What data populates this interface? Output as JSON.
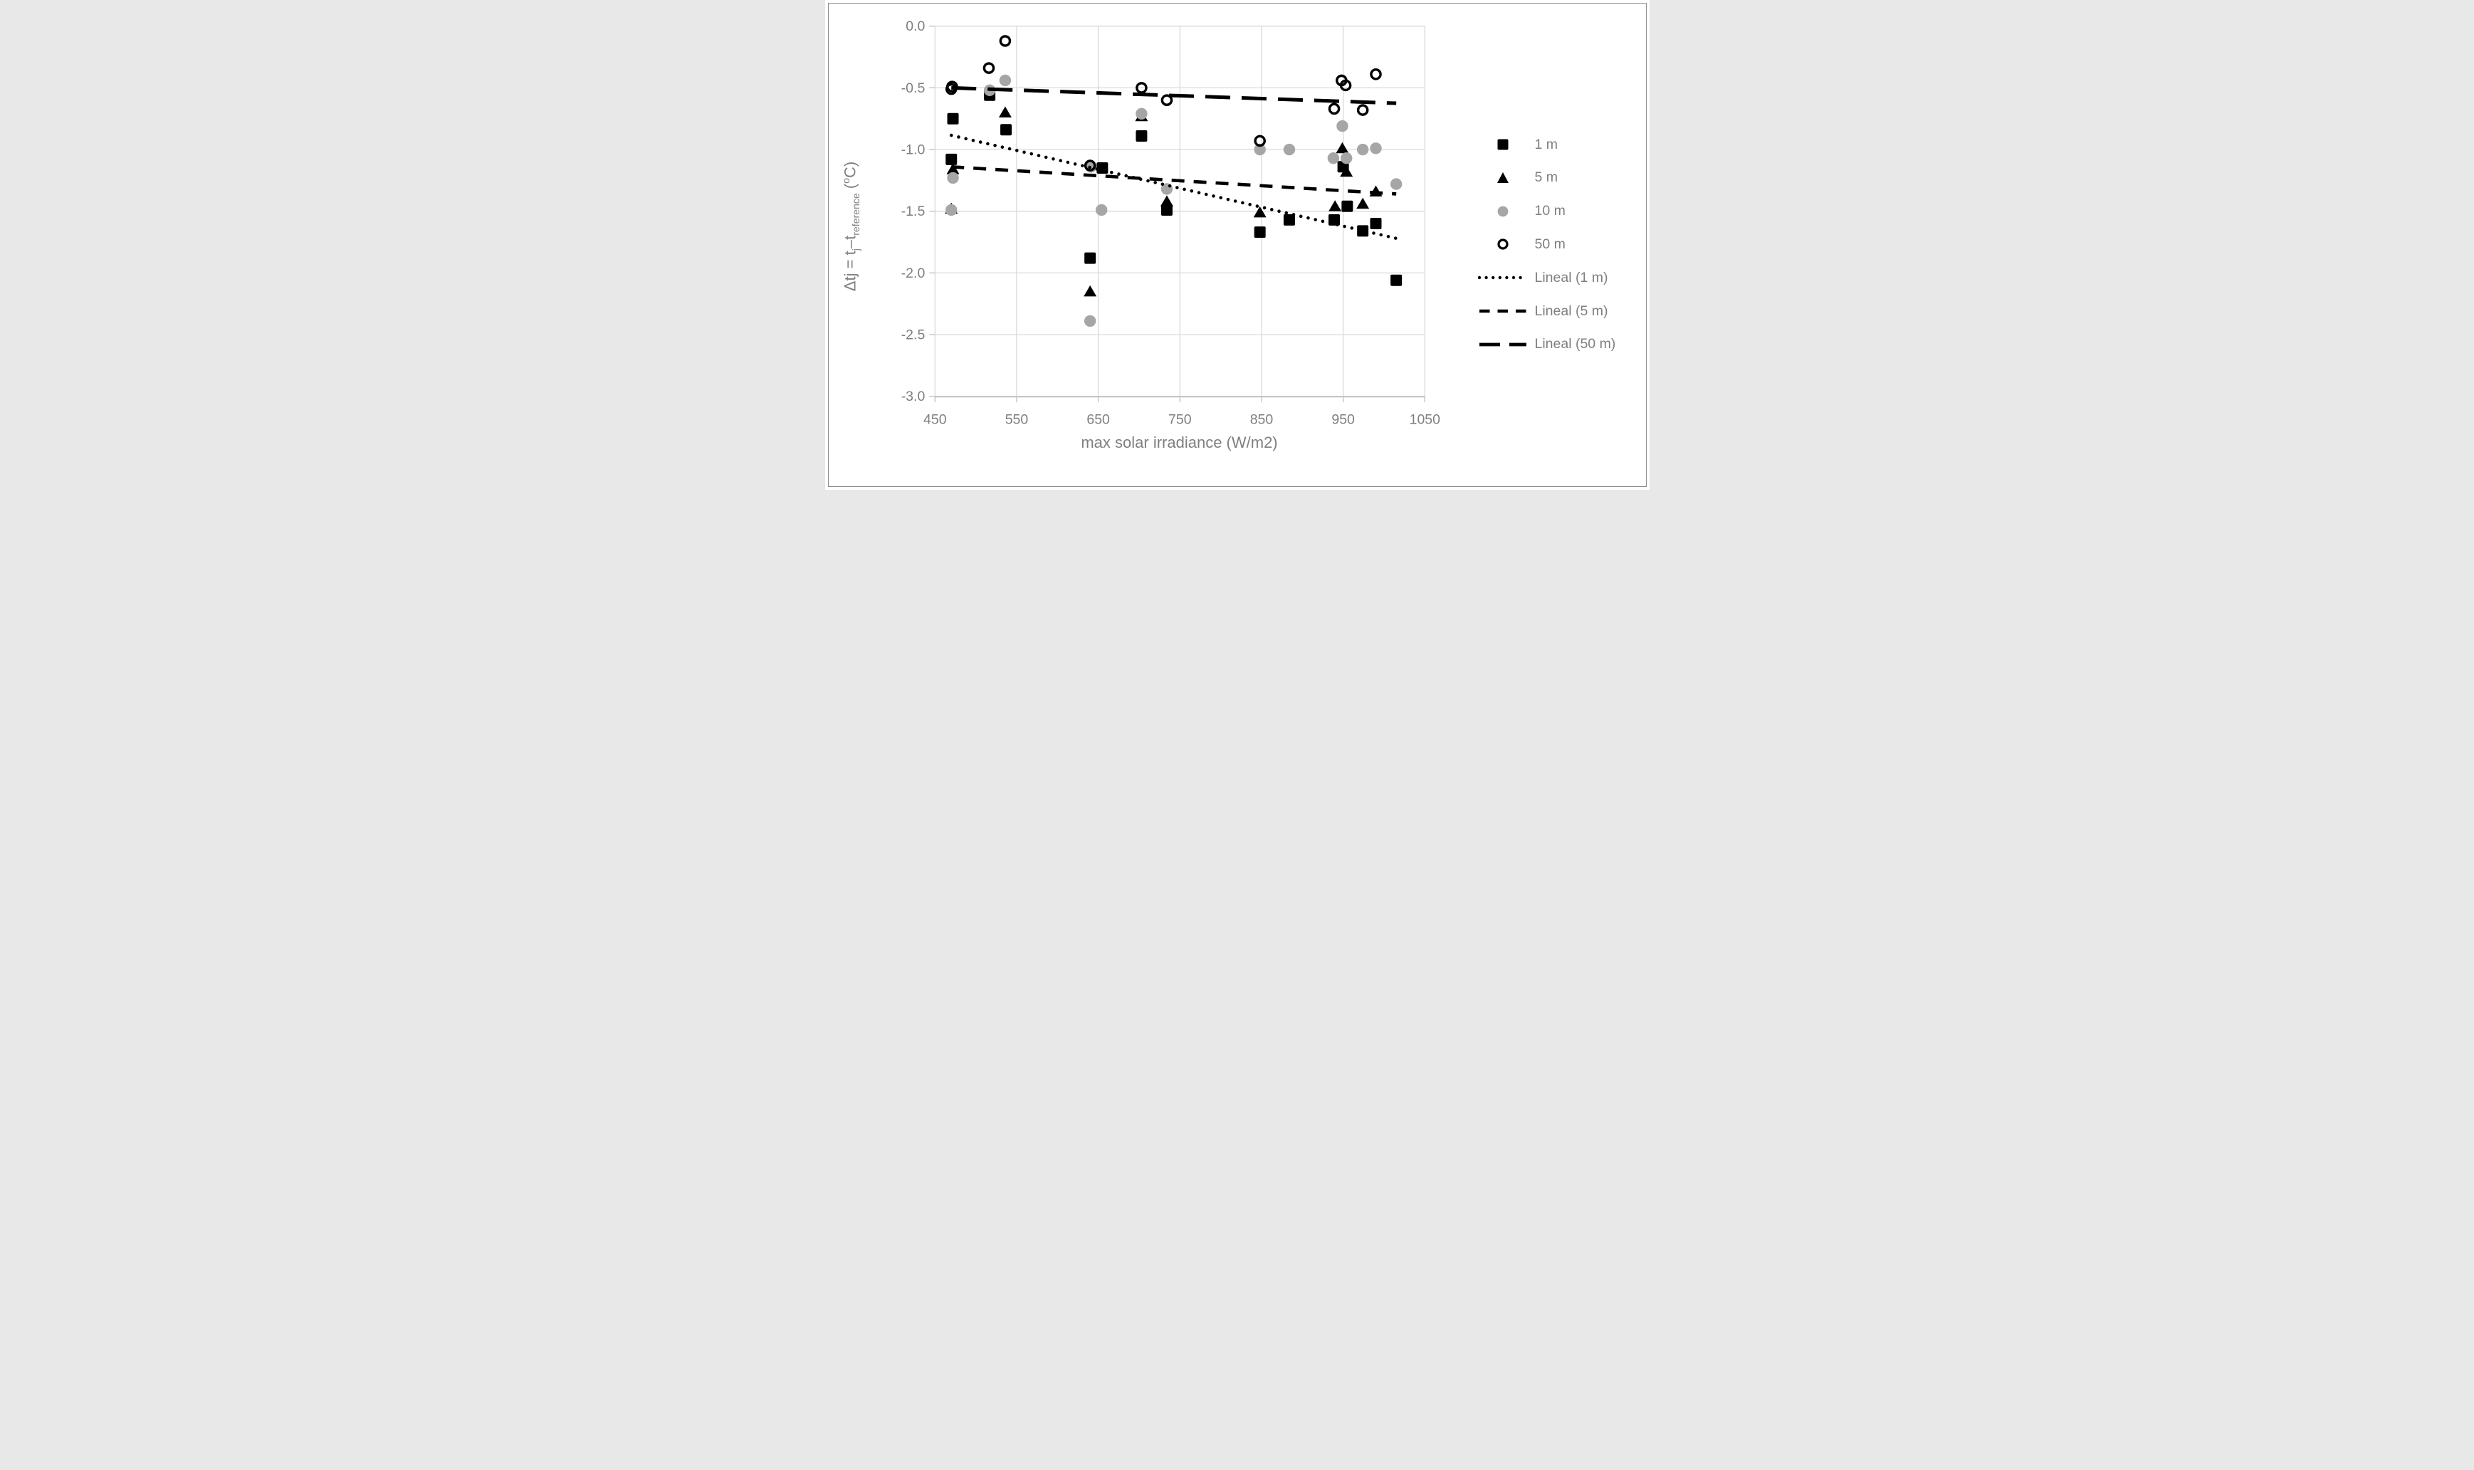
{
  "figure": {
    "border_color": "#8c8c8c",
    "background": "#ffffff"
  },
  "chart_data": {
    "type": "scatter",
    "title": "",
    "xlabel": "max solar irradiance (W/m2)",
    "ylabel_text": "Δtj = tj–treference (oC)",
    "ylabel_parts": [
      {
        "t": "Δtj = t"
      },
      {
        "sub": "j"
      },
      {
        "t": "–t"
      },
      {
        "sub": "reference"
      },
      {
        "t": " ("
      },
      {
        "sup": "o"
      },
      {
        "t": "C)"
      }
    ],
    "xlim": [
      450,
      1050
    ],
    "ylim": [
      -3.0,
      0.0
    ],
    "xtick_labels": [
      "450",
      "550",
      "650",
      "750",
      "850",
      "950",
      "1050"
    ],
    "ytick_labels": [
      "0.0",
      "-0.5",
      "-1.0",
      "-1.5",
      "-2.0",
      "-2.5",
      "-3.0"
    ],
    "grid": true,
    "legend_position": "right",
    "colors": {
      "grid": "#d9d9d9",
      "axis": "#bfbfbf",
      "text": "#7f7f7f",
      "black_series": "#000000",
      "gray_series": "#a6a6a6"
    },
    "series": [
      {
        "name": "1 m",
        "marker": "square",
        "color": "#000000",
        "points": [
          [
            472,
            -0.75
          ],
          [
            517,
            -0.56
          ],
          [
            537,
            -0.84
          ],
          [
            470,
            -1.08
          ],
          [
            655,
            -1.15
          ],
          [
            640,
            -1.88
          ],
          [
            703,
            -0.89
          ],
          [
            734,
            -1.49
          ],
          [
            848,
            -1.67
          ],
          [
            884,
            -1.57
          ],
          [
            950,
            -1.14
          ],
          [
            939,
            -1.57
          ],
          [
            955,
            -1.46
          ],
          [
            974,
            -1.66
          ],
          [
            990,
            -1.6
          ],
          [
            1015,
            -2.06
          ]
        ]
      },
      {
        "name": "5 m",
        "marker": "triangle",
        "color": "#000000",
        "points": [
          [
            472,
            -1.16
          ],
          [
            470,
            -1.48
          ],
          [
            536,
            -0.7
          ],
          [
            640,
            -2.15
          ],
          [
            703,
            -0.73
          ],
          [
            734,
            -1.42
          ],
          [
            848,
            -1.51
          ],
          [
            949,
            -0.99
          ],
          [
            954,
            -1.18
          ],
          [
            940,
            -1.46
          ],
          [
            974,
            -1.44
          ],
          [
            990,
            -1.34
          ]
        ]
      },
      {
        "name": "10 m",
        "marker": "circle",
        "color": "#a6a6a6",
        "points": [
          [
            472,
            -1.23
          ],
          [
            470,
            -1.49
          ],
          [
            517,
            -0.52
          ],
          [
            536,
            -0.44
          ],
          [
            641,
            -1.14
          ],
          [
            654,
            -1.49
          ],
          [
            640,
            -2.39
          ],
          [
            703,
            -0.71
          ],
          [
            734,
            -1.32
          ],
          [
            848,
            -1.0
          ],
          [
            884,
            -1.0
          ],
          [
            949,
            -0.81
          ],
          [
            938,
            -1.07
          ],
          [
            954,
            -1.07
          ],
          [
            974,
            -1.0
          ],
          [
            990,
            -0.99
          ],
          [
            1015,
            -1.28
          ]
        ]
      },
      {
        "name": "50 m",
        "marker": "open-circle",
        "color": "#000000",
        "points": [
          [
            471,
            -0.49
          ],
          [
            470,
            -0.51
          ],
          [
            516,
            -0.34
          ],
          [
            536,
            -0.12
          ],
          [
            640,
            -1.13
          ],
          [
            703,
            -0.5
          ],
          [
            734,
            -0.6
          ],
          [
            848,
            -0.93
          ],
          [
            948,
            -0.44
          ],
          [
            953,
            -0.48
          ],
          [
            990,
            -0.39
          ],
          [
            939,
            -0.67
          ],
          [
            974,
            -0.68
          ]
        ]
      }
    ],
    "trendlines": [
      {
        "name": "Lineal (1 m)",
        "style": "dotted",
        "x": [
          470,
          1015
        ],
        "y": [
          -0.885,
          -1.72
        ]
      },
      {
        "name": "Lineal (5 m)",
        "style": "dashed",
        "x": [
          470,
          1015
        ],
        "y": [
          -1.14,
          -1.36
        ]
      },
      {
        "name": "Lineal (50 m)",
        "style": "long-dash",
        "x": [
          470,
          1015
        ],
        "y": [
          -0.5,
          -0.625
        ]
      }
    ],
    "legend": [
      {
        "label": "1 m",
        "swatch": "square"
      },
      {
        "label": "5 m",
        "swatch": "triangle"
      },
      {
        "label": "10 m",
        "swatch": "circle"
      },
      {
        "label": "50 m",
        "swatch": "open-circle"
      },
      {
        "label": "Lineal (1 m)",
        "swatch": "dotted"
      },
      {
        "label": "Lineal (5 m)",
        "swatch": "dashed"
      },
      {
        "label": "Lineal (50 m)",
        "swatch": "long-dash"
      }
    ]
  }
}
